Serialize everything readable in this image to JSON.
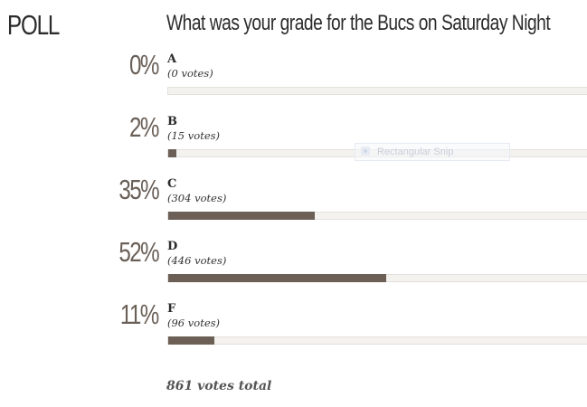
{
  "poll": {
    "label": "POLL",
    "question": "What was your grade for the Bucs on Saturday Night",
    "options": [
      {
        "pct_text": "0%",
        "letter": "A",
        "votes_text": "(0 votes)",
        "share": 0.0
      },
      {
        "pct_text": "2%",
        "letter": "B",
        "votes_text": "(15 votes)",
        "share": 0.02
      },
      {
        "pct_text": "35%",
        "letter": "C",
        "votes_text": "(304 votes)",
        "share": 0.35
      },
      {
        "pct_text": "52%",
        "letter": "D",
        "votes_text": "(446 votes)",
        "share": 0.52
      },
      {
        "pct_text": "11%",
        "letter": "F",
        "votes_text": "(96 votes)",
        "share": 0.11
      }
    ],
    "total_text": "861 votes total"
  },
  "overlay": {
    "snip_label": "Rectangular Snip"
  },
  "colors": {
    "bar_fill": "#6b5f56",
    "bar_track": "#f4f2ef",
    "pct_text": "#6a6058"
  }
}
